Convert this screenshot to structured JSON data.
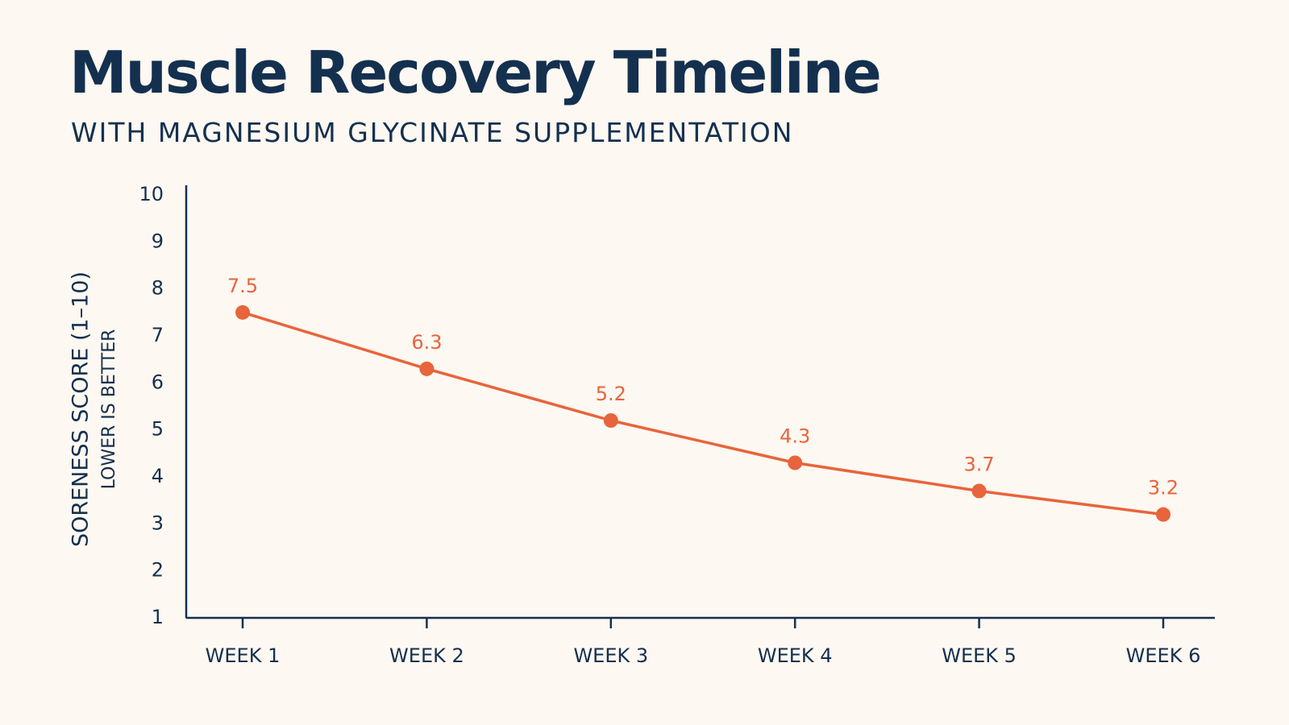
{
  "chart_data": {
    "type": "line",
    "title": "Muscle Recovery Timeline",
    "subtitle": "WITH MAGNESIUM GLYCINATE SUPPLEMENTATION",
    "y_label": "SORENESS SCORE (1–10)",
    "y_note": "LOWER IS BETTER",
    "categories": [
      "WEEK 1",
      "WEEK 2",
      "WEEK 3",
      "WEEK 4",
      "WEEK 5",
      "WEEK 6"
    ],
    "series": [
      {
        "color": "#e8643c",
        "values": [
          7.5,
          6.3,
          5.2,
          4.3,
          3.7,
          3.2
        ]
      }
    ],
    "ylim": [
      1,
      10
    ],
    "yticks": [
      1,
      2,
      3,
      4,
      5,
      6,
      7,
      8,
      9,
      10
    ],
    "axis_color": "#14304f"
  }
}
